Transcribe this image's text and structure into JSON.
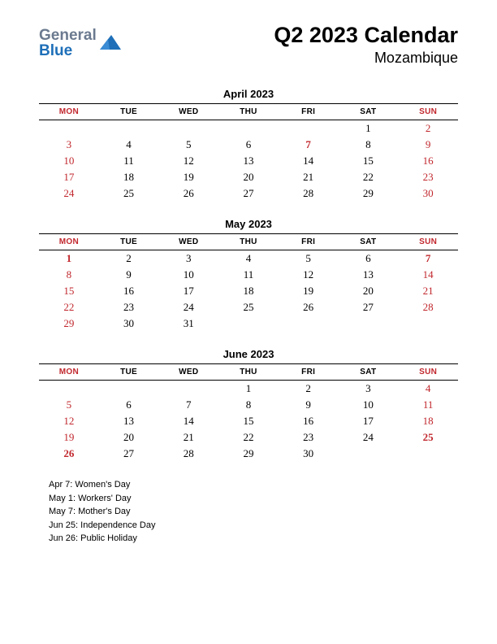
{
  "logo": {
    "text1": "General",
    "text2": "Blue",
    "color1": "#6b7a8f",
    "color2": "#1e6fb8",
    "shape_color": "#1e6fb8"
  },
  "title": "Q2 2023 Calendar",
  "subtitle": "Mozambique",
  "day_headers": [
    "MON",
    "TUE",
    "WED",
    "THU",
    "FRI",
    "SAT",
    "SUN"
  ],
  "red_header_idx": [
    0,
    6
  ],
  "months": [
    {
      "name": "April 2023",
      "weeks": [
        [
          null,
          null,
          null,
          null,
          null,
          {
            "d": 1
          },
          {
            "d": 2,
            "c": "red"
          }
        ],
        [
          {
            "d": 3,
            "c": "red"
          },
          {
            "d": 4
          },
          {
            "d": 5
          },
          {
            "d": 6
          },
          {
            "d": 7,
            "c": "red-bold"
          },
          {
            "d": 8
          },
          {
            "d": 9,
            "c": "red"
          }
        ],
        [
          {
            "d": 10,
            "c": "red"
          },
          {
            "d": 11
          },
          {
            "d": 12
          },
          {
            "d": 13
          },
          {
            "d": 14
          },
          {
            "d": 15
          },
          {
            "d": 16,
            "c": "red"
          }
        ],
        [
          {
            "d": 17,
            "c": "red"
          },
          {
            "d": 18
          },
          {
            "d": 19
          },
          {
            "d": 20
          },
          {
            "d": 21
          },
          {
            "d": 22
          },
          {
            "d": 23,
            "c": "red"
          }
        ],
        [
          {
            "d": 24,
            "c": "red"
          },
          {
            "d": 25
          },
          {
            "d": 26
          },
          {
            "d": 27
          },
          {
            "d": 28
          },
          {
            "d": 29
          },
          {
            "d": 30,
            "c": "red"
          }
        ]
      ]
    },
    {
      "name": "May 2023",
      "weeks": [
        [
          {
            "d": 1,
            "c": "red-bold"
          },
          {
            "d": 2
          },
          {
            "d": 3
          },
          {
            "d": 4
          },
          {
            "d": 5
          },
          {
            "d": 6
          },
          {
            "d": 7,
            "c": "red-bold"
          }
        ],
        [
          {
            "d": 8,
            "c": "red"
          },
          {
            "d": 9
          },
          {
            "d": 10
          },
          {
            "d": 11
          },
          {
            "d": 12
          },
          {
            "d": 13
          },
          {
            "d": 14,
            "c": "red"
          }
        ],
        [
          {
            "d": 15,
            "c": "red"
          },
          {
            "d": 16
          },
          {
            "d": 17
          },
          {
            "d": 18
          },
          {
            "d": 19
          },
          {
            "d": 20
          },
          {
            "d": 21,
            "c": "red"
          }
        ],
        [
          {
            "d": 22,
            "c": "red"
          },
          {
            "d": 23
          },
          {
            "d": 24
          },
          {
            "d": 25
          },
          {
            "d": 26
          },
          {
            "d": 27
          },
          {
            "d": 28,
            "c": "red"
          }
        ],
        [
          {
            "d": 29,
            "c": "red"
          },
          {
            "d": 30
          },
          {
            "d": 31
          },
          null,
          null,
          null,
          null
        ]
      ]
    },
    {
      "name": "June 2023",
      "weeks": [
        [
          null,
          null,
          null,
          {
            "d": 1
          },
          {
            "d": 2
          },
          {
            "d": 3
          },
          {
            "d": 4,
            "c": "red"
          }
        ],
        [
          {
            "d": 5,
            "c": "red"
          },
          {
            "d": 6
          },
          {
            "d": 7
          },
          {
            "d": 8
          },
          {
            "d": 9
          },
          {
            "d": 10
          },
          {
            "d": 11,
            "c": "red"
          }
        ],
        [
          {
            "d": 12,
            "c": "red"
          },
          {
            "d": 13
          },
          {
            "d": 14
          },
          {
            "d": 15
          },
          {
            "d": 16
          },
          {
            "d": 17
          },
          {
            "d": 18,
            "c": "red"
          }
        ],
        [
          {
            "d": 19,
            "c": "red"
          },
          {
            "d": 20
          },
          {
            "d": 21
          },
          {
            "d": 22
          },
          {
            "d": 23
          },
          {
            "d": 24
          },
          {
            "d": 25,
            "c": "red-bold"
          }
        ],
        [
          {
            "d": 26,
            "c": "red-bold"
          },
          {
            "d": 27
          },
          {
            "d": 28
          },
          {
            "d": 29
          },
          {
            "d": 30
          },
          null,
          null
        ]
      ]
    }
  ],
  "holidays": [
    "Apr 7: Women's Day",
    "May 1: Workers' Day",
    "May 7: Mother's Day",
    "Jun 25: Independence Day",
    "Jun 26: Public Holiday"
  ],
  "style": {
    "page_bg": "#ffffff",
    "text_color": "#000000",
    "red_color": "#c1272d",
    "title_fontsize": 27,
    "subtitle_fontsize": 18,
    "month_title_fontsize": 13,
    "header_fontsize": 10,
    "cell_fontsize": 13,
    "holiday_fontsize": 11,
    "border_top_width": 1.5,
    "border_bottom_width": 1
  }
}
